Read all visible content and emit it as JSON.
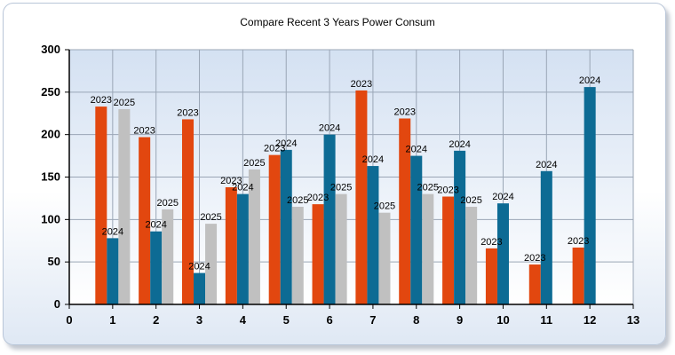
{
  "chart_data": {
    "type": "bar",
    "title": "Compare Recent 3 Years Power Consum",
    "xlabel": "",
    "ylabel": "",
    "xlim": [
      0,
      13
    ],
    "ylim": [
      0,
      300
    ],
    "xticks": [
      "0",
      "1",
      "2",
      "3",
      "4",
      "5",
      "6",
      "7",
      "8",
      "9",
      "10",
      "11",
      "12",
      "13"
    ],
    "yticks": [
      "0",
      "50",
      "100",
      "150",
      "200",
      "250",
      "300"
    ],
    "grid": true,
    "legend": "none",
    "colors": {
      "2023": "#e2470f",
      "2024": "#0d6b94",
      "2025": "#c0c0c0"
    },
    "categories": [
      1,
      2,
      3,
      4,
      5,
      6,
      7,
      8,
      9,
      10,
      11,
      12
    ],
    "series": [
      {
        "name": "2023",
        "values": [
          233,
          197,
          218,
          138,
          176,
          118,
          252,
          219,
          127,
          66,
          47,
          67
        ]
      },
      {
        "name": "2024",
        "values": [
          78,
          86,
          37,
          130,
          182,
          200,
          163,
          175,
          181,
          119,
          157,
          256
        ]
      },
      {
        "name": "2025",
        "values": [
          230,
          112,
          95,
          159,
          115,
          130,
          108,
          130,
          115,
          null,
          null,
          null
        ]
      }
    ]
  }
}
